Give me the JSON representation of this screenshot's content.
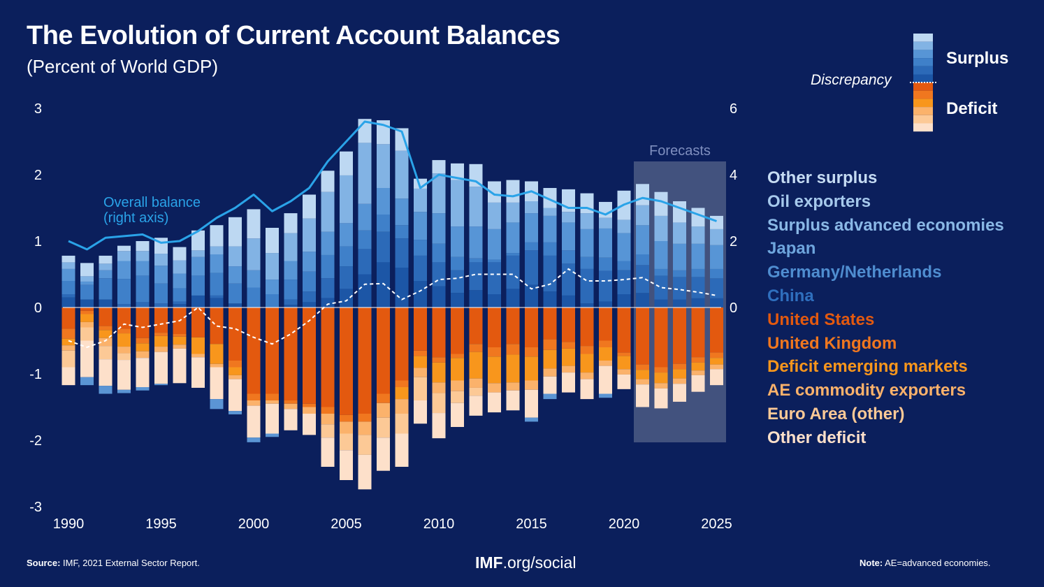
{
  "title": "The Evolution of Current Account Balances",
  "subtitle": "(Percent of World GDP)",
  "key": {
    "surplus": "Surplus",
    "discrepancy": "Discrepancy",
    "deficit": "Deficit"
  },
  "footer": {
    "source_label": "Source:",
    "source_text": "IMF, 2021 External Sector Report.",
    "center_bold": "IMF",
    "center_rest": ".org/social",
    "note_label": "Note:",
    "note_text": "AE=advanced economies."
  },
  "colors": {
    "background": "#0b1f5c",
    "overall_line": "#2aa3e8",
    "discrepancy_line": "#ffffff",
    "forecast_box": "#46557f"
  },
  "chart_data": {
    "type": "bar",
    "stacked": true,
    "x": [
      1990,
      1991,
      1992,
      1993,
      1994,
      1995,
      1996,
      1997,
      1998,
      1999,
      2000,
      2001,
      2002,
      2003,
      2004,
      2005,
      2006,
      2007,
      2008,
      2009,
      2010,
      2011,
      2012,
      2013,
      2014,
      2015,
      2016,
      2017,
      2018,
      2019,
      2020,
      2021,
      2022,
      2023,
      2024,
      2025
    ],
    "x_ticks": [
      "1990",
      "1995",
      "2000",
      "2005",
      "2010",
      "2015",
      "2020",
      "2025"
    ],
    "y_left": {
      "ticks": [
        "3",
        "2",
        "1",
        "0",
        "-1",
        "-2",
        "-3"
      ],
      "lim": [
        -3,
        3
      ]
    },
    "y_right": {
      "ticks": [
        "6",
        "4",
        "2",
        "0"
      ],
      "lim": [
        -6,
        6
      ]
    },
    "forecast_label": "Forecasts",
    "forecast_from": 2021,
    "annotation": [
      "Overall balance",
      "(right axis)"
    ],
    "surplus_series": [
      {
        "name": "China",
        "color": "#1c56a6",
        "values": [
          0.15,
          0.12,
          0.12,
          0.0,
          0.0,
          0.0,
          0.05,
          0.18,
          0.14,
          0.06,
          0.0,
          0.0,
          0.04,
          0.08,
          0.14,
          0.28,
          0.5,
          0.68,
          0.6,
          0.4,
          0.32,
          0.22,
          0.26,
          0.2,
          0.28,
          0.34,
          0.24,
          0.18,
          0.06,
          0.09,
          0.2,
          0.22,
          0.12,
          0.12,
          0.14,
          0.14
        ]
      },
      {
        "name": "Germany/Netherlands",
        "color": "#2c6ab8",
        "values": [
          0.05,
          0.0,
          0.0,
          0.05,
          0.08,
          0.06,
          0.04,
          0.0,
          0.04,
          0.0,
          0.0,
          0.0,
          0.08,
          0.16,
          0.3,
          0.34,
          0.38,
          0.46,
          0.44,
          0.38,
          0.36,
          0.34,
          0.42,
          0.48,
          0.5,
          0.52,
          0.54,
          0.48,
          0.52,
          0.46,
          0.36,
          0.42,
          0.36,
          0.34,
          0.32,
          0.3
        ]
      },
      {
        "name": "Japan",
        "color": "#3f80c9",
        "values": [
          0.2,
          0.22,
          0.32,
          0.38,
          0.4,
          0.3,
          0.2,
          0.3,
          0.34,
          0.3,
          0.3,
          0.2,
          0.3,
          0.3,
          0.35,
          0.3,
          0.28,
          0.26,
          0.2,
          0.24,
          0.28,
          0.2,
          0.06,
          0.04,
          0.04,
          0.12,
          0.2,
          0.2,
          0.18,
          0.2,
          0.14,
          0.16,
          0.1,
          0.1,
          0.12,
          0.14
        ]
      },
      {
        "name": "Surplus advanced economies",
        "color": "#5795d6",
        "values": [
          0.18,
          0.05,
          0.12,
          0.27,
          0.22,
          0.27,
          0.22,
          0.28,
          0.28,
          0.26,
          0.26,
          0.22,
          0.28,
          0.3,
          0.35,
          0.35,
          0.4,
          0.4,
          0.4,
          0.42,
          0.46,
          0.46,
          0.48,
          0.46,
          0.46,
          0.44,
          0.4,
          0.42,
          0.42,
          0.44,
          0.42,
          0.44,
          0.42,
          0.4,
          0.38,
          0.36
        ]
      },
      {
        "name": "Oil exporters",
        "color": "#82b3e4",
        "values": [
          0.1,
          0.08,
          0.1,
          0.15,
          0.15,
          0.18,
          0.2,
          0.1,
          0.12,
          0.3,
          0.48,
          0.4,
          0.42,
          0.5,
          0.6,
          0.72,
          0.92,
          0.66,
          0.72,
          0.35,
          0.6,
          0.7,
          0.6,
          0.4,
          0.3,
          0.18,
          0.12,
          0.16,
          0.24,
          0.16,
          0.2,
          0.3,
          0.38,
          0.32,
          0.26,
          0.24
        ]
      },
      {
        "name": "Other surplus",
        "color": "#bdd8f2",
        "values": [
          0.1,
          0.2,
          0.12,
          0.08,
          0.15,
          0.24,
          0.2,
          0.3,
          0.32,
          0.44,
          0.44,
          0.38,
          0.3,
          0.36,
          0.32,
          0.36,
          0.36,
          0.36,
          0.34,
          0.15,
          0.2,
          0.25,
          0.34,
          0.32,
          0.34,
          0.3,
          0.3,
          0.34,
          0.3,
          0.24,
          0.44,
          0.32,
          0.36,
          0.32,
          0.28,
          0.2
        ]
      }
    ],
    "deficit_series": [
      {
        "name": "United States",
        "color": "#e3590f",
        "values": [
          -0.32,
          -0.05,
          -0.28,
          -0.32,
          -0.46,
          -0.38,
          -0.4,
          -0.45,
          -0.55,
          -0.8,
          -1.3,
          -1.3,
          -1.4,
          -1.45,
          -1.5,
          -1.62,
          -1.6,
          -1.3,
          -1.1,
          -0.65,
          -0.75,
          -0.7,
          -0.55,
          -0.6,
          -0.55,
          -0.6,
          -0.48,
          -0.52,
          -0.58,
          -0.5,
          -0.68,
          -0.86,
          -0.9,
          -0.85,
          -0.75,
          -0.68
        ]
      },
      {
        "name": "United Kingdom",
        "color": "#f0771f",
        "values": [
          -0.15,
          -0.05,
          -0.06,
          -0.07,
          -0.08,
          -0.05,
          -0.04,
          0.0,
          0.0,
          -0.1,
          -0.1,
          -0.1,
          -0.05,
          -0.05,
          -0.1,
          -0.1,
          -0.12,
          -0.14,
          -0.1,
          -0.08,
          -0.08,
          -0.06,
          -0.12,
          -0.14,
          -0.16,
          -0.14,
          -0.16,
          -0.1,
          -0.12,
          -0.1,
          -0.05,
          -0.08,
          -0.08,
          -0.08,
          -0.08,
          -0.08
        ]
      },
      {
        "name": "Deficit emerging markets",
        "color": "#f8961c",
        "values": [
          -0.1,
          -0.12,
          -0.12,
          -0.2,
          -0.12,
          -0.16,
          -0.12,
          -0.25,
          -0.3,
          -0.12,
          0.0,
          0.0,
          0.0,
          0.0,
          0.0,
          0.0,
          0.0,
          0.0,
          -0.18,
          -0.18,
          -0.3,
          -0.34,
          -0.4,
          -0.4,
          -0.42,
          -0.36,
          -0.28,
          -0.26,
          -0.28,
          -0.2,
          -0.2,
          -0.14,
          -0.16,
          -0.14,
          -0.12,
          -0.1
        ]
      },
      {
        "name": "AE commodity exporters",
        "color": "#fbb26b",
        "values": [
          -0.08,
          -0.08,
          -0.12,
          -0.1,
          -0.1,
          -0.08,
          -0.06,
          -0.05,
          -0.05,
          -0.06,
          -0.08,
          -0.05,
          -0.08,
          -0.1,
          -0.16,
          -0.18,
          -0.2,
          -0.22,
          -0.22,
          -0.14,
          -0.16,
          -0.16,
          -0.14,
          -0.14,
          -0.12,
          -0.14,
          -0.12,
          -0.1,
          -0.1,
          -0.08,
          -0.08,
          -0.08,
          -0.08,
          -0.08,
          -0.07,
          -0.07
        ]
      },
      {
        "name": "Euro Area (other)",
        "color": "#fcc996",
        "values": [
          -0.25,
          -0.2,
          -0.2,
          -0.1,
          0.0,
          0.0,
          0.0,
          0.0,
          0.0,
          0.0,
          0.0,
          0.0,
          0.0,
          0.0,
          -0.2,
          -0.25,
          -0.3,
          -0.3,
          -0.3,
          -0.35,
          -0.3,
          -0.18,
          -0.12,
          0.0,
          0.0,
          0.0,
          0.0,
          0.0,
          0.0,
          0.0,
          0.0,
          0.0,
          0.0,
          0.0,
          0.0,
          0.0
        ]
      },
      {
        "name": "Other deficit",
        "color": "#fde0ca",
        "values": [
          -0.27,
          -0.55,
          -0.4,
          -0.45,
          -0.44,
          -0.48,
          -0.52,
          -0.46,
          -0.48,
          -0.48,
          -0.48,
          -0.45,
          -0.32,
          -0.32,
          -0.44,
          -0.45,
          -0.52,
          -0.5,
          -0.5,
          -0.35,
          -0.38,
          -0.36,
          -0.3,
          -0.3,
          -0.3,
          -0.42,
          -0.26,
          -0.3,
          -0.3,
          -0.42,
          -0.22,
          -0.34,
          -0.3,
          -0.27,
          -0.25,
          -0.24
        ]
      }
    ],
    "residual_blue": [
      0,
      -0.12,
      -0.12,
      -0.05,
      -0.05,
      -0.02,
      0,
      0,
      -0.15,
      -0.05,
      -0.07,
      -0.05,
      0,
      0,
      0,
      0,
      0,
      0,
      0,
      0,
      0,
      0,
      0,
      0,
      0,
      -0.06,
      -0.08,
      0,
      0,
      -0.06,
      0,
      0,
      0,
      0,
      0,
      0
    ],
    "overall_balance": [
      2.0,
      1.75,
      2.1,
      2.15,
      2.2,
      1.95,
      2.0,
      2.3,
      2.7,
      3.0,
      3.4,
      2.9,
      3.2,
      3.6,
      4.4,
      5.0,
      5.6,
      5.5,
      5.3,
      3.6,
      4.0,
      3.9,
      3.8,
      3.4,
      3.35,
      3.5,
      3.25,
      3.0,
      3.0,
      2.8,
      3.1,
      3.3,
      3.2,
      3.0,
      2.8,
      2.6
    ],
    "discrepancy": [
      -0.5,
      -0.6,
      -0.5,
      -0.25,
      -0.3,
      -0.25,
      -0.2,
      0.0,
      -0.28,
      -0.32,
      -0.45,
      -0.55,
      -0.4,
      -0.2,
      0.05,
      0.1,
      0.35,
      0.36,
      0.12,
      0.25,
      0.42,
      0.44,
      0.5,
      0.5,
      0.5,
      0.28,
      0.35,
      0.58,
      0.4,
      0.4,
      0.42,
      0.45,
      0.3,
      0.27,
      0.23,
      0.18
    ]
  }
}
